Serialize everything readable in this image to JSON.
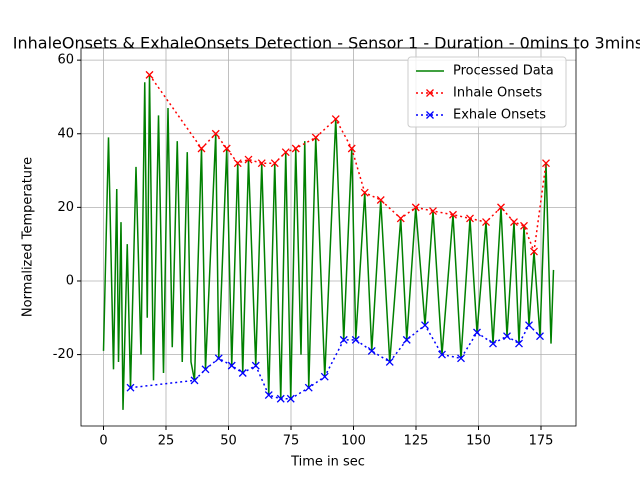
{
  "chart_data": {
    "type": "line",
    "title": "InhaleOnsets & ExhaleOnsets Detection - Sensor 1 - Duration - 0mins to 3mins",
    "xlabel": "Time in sec",
    "ylabel": "Normalized Temperature",
    "xlim": [
      -9,
      189
    ],
    "ylim": [
      -39.4,
      63.3
    ],
    "xticks": [
      0,
      25,
      50,
      75,
      100,
      125,
      150,
      175
    ],
    "yticks": [
      -20,
      0,
      20,
      40,
      60
    ],
    "grid": true,
    "legend": "upper right",
    "series": [
      {
        "name": "Processed Data",
        "color": "#008000",
        "style": "solid",
        "marker": "none",
        "x": [
          0,
          2,
          4,
          5.3,
          6,
          7,
          7.8,
          9.5,
          10.8,
          13,
          15,
          16.5,
          17.5,
          18.4,
          20,
          22,
          24,
          25.8,
          27.5,
          29.5,
          31.5,
          33.5,
          35,
          36.4,
          39.2,
          40.8,
          44.9,
          46.1,
          49.3,
          51.3,
          53.7,
          55.7,
          58,
          60.9,
          63.3,
          66.1,
          68.5,
          70.9,
          72.9,
          74.9,
          76.9,
          79,
          80.5,
          82.1,
          84.9,
          88.5,
          92.9,
          96.1,
          99.3,
          100.9,
          104.5,
          107.3,
          110.9,
          114.5,
          118.9,
          121.3,
          124.9,
          128.6,
          131.8,
          135.4,
          139.8,
          143,
          146.6,
          149.4,
          153,
          155.8,
          159,
          161.4,
          164.2,
          166.2,
          168.2,
          170.2,
          172.2,
          174.6,
          177,
          179,
          180
        ],
        "values": [
          -19,
          39,
          -24,
          25,
          -22,
          16,
          -35,
          10,
          -29,
          31,
          -20,
          54,
          -10,
          56,
          -27,
          45,
          -25,
          47,
          -18,
          38,
          -22,
          35,
          -22,
          -27,
          36,
          -24,
          40,
          -21,
          36,
          -23,
          32,
          -25,
          33,
          -23,
          32,
          -31,
          32,
          -32,
          35,
          -32,
          36,
          -20,
          38,
          -29,
          39,
          -26,
          44,
          -16,
          36,
          -16,
          24,
          -19,
          22,
          -22,
          17,
          -16,
          20,
          -12,
          19,
          -20,
          18,
          -21,
          17,
          -14,
          16,
          -17,
          20,
          -15,
          16,
          -17,
          15,
          -12,
          8,
          -15,
          32,
          -17,
          3
        ]
      },
      {
        "name": "Inhale Onsets",
        "color": "#ff0000",
        "style": "dotted",
        "marker": "x",
        "x": [
          18.4,
          39.2,
          44.9,
          49.3,
          53.7,
          58,
          63.3,
          68.5,
          72.9,
          76.9,
          84.9,
          92.9,
          99.3,
          104.5,
          110.9,
          118.9,
          124.9,
          131.8,
          139.8,
          146.6,
          153,
          159,
          164.2,
          168.2,
          172.2,
          177
        ],
        "values": [
          56,
          36,
          40,
          36,
          32,
          33,
          32,
          32,
          35,
          36,
          39,
          44,
          36,
          24,
          22,
          17,
          20,
          19,
          18,
          17,
          16,
          20,
          16,
          15,
          8,
          32
        ]
      },
      {
        "name": "Exhale Onsets",
        "color": "#0000ff",
        "style": "dotted",
        "marker": "x",
        "x": [
          10.8,
          36.4,
          40.8,
          46.1,
          51.3,
          55.7,
          60.9,
          66.1,
          70.9,
          74.9,
          82.1,
          88.5,
          96.1,
          100.9,
          107.3,
          114.5,
          121.3,
          128.6,
          135.4,
          143,
          149.4,
          155.8,
          161.4,
          166.2,
          170.2,
          174.6
        ],
        "values": [
          -29,
          -27,
          -24,
          -21,
          -23,
          -25,
          -23,
          -31,
          -32,
          -32,
          -29,
          -26,
          -16,
          -16,
          -19,
          -22,
          -16,
          -12,
          -20,
          -21,
          -14,
          -17,
          -15,
          -17,
          -12,
          -15
        ]
      }
    ]
  }
}
